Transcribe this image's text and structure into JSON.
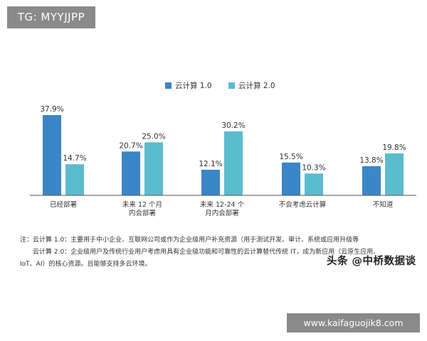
{
  "badge_top": "TG: MYYJJPP",
  "badge_bottom": "www.kaifaguojik8.com",
  "watermark": "头条 @中桥数据谈",
  "notes": {
    "line1": "注：云计算 1.0：主要用于中小企业、互联网公司或作为企业级用户补充资源（用于测试开发、审计、系统或应用升级等",
    "line2": "　　云计算 2.0：企业级用户及传统行业用户考虑用具有企业级功能和可靠性的云计算替代传统 IT，成为新应用（云原生应用、",
    "line3": "IoT、AI）的核心资源。且能够支持多云环境。"
  },
  "chart_data": {
    "type": "bar",
    "categories": [
      [
        "已经部署"
      ],
      [
        "未来 12 个月",
        "内会部署"
      ],
      [
        "未来 12-24 个",
        "月内会部署"
      ],
      [
        "不会考虑云计算"
      ],
      [
        "不知道"
      ]
    ],
    "series": [
      {
        "name": "云计算 1.0",
        "values": [
          37.9,
          20.7,
          12.1,
          15.5,
          13.8
        ],
        "labels": [
          "37.9%",
          "20.7%",
          "12.1%",
          "15.5%",
          "13.8%"
        ]
      },
      {
        "name": "云计算 2.0",
        "values": [
          14.7,
          25.0,
          30.2,
          10.3,
          19.8
        ],
        "labels": [
          "14.7%",
          "25.0%",
          "30.2%",
          "10.3%",
          "19.8%"
        ]
      }
    ],
    "colors": [
      "#3b86c6",
      "#5bbccd"
    ],
    "legend_position": "top-center",
    "grid": false,
    "ylim": [
      0,
      40
    ]
  }
}
